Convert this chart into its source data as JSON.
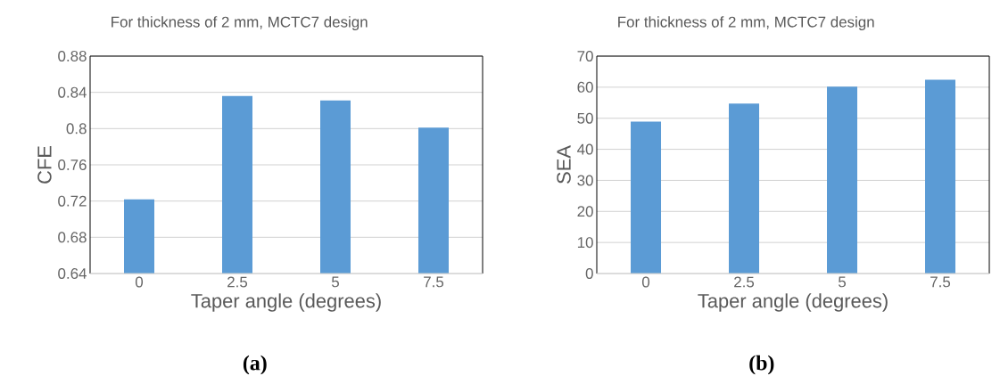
{
  "chart_data": [
    {
      "type": "bar",
      "title": "For thickness of 2 mm, MCTC7 design",
      "xlabel": "Taper angle (degrees)",
      "ylabel": "CFE",
      "categories": [
        "0",
        "2.5",
        "5",
        "7.5"
      ],
      "values": [
        0.722,
        0.836,
        0.831,
        0.801
      ],
      "color": "#5b9bd5",
      "ylim": [
        0.64,
        0.88
      ],
      "yticks": [
        0.64,
        0.68,
        0.72,
        0.76,
        0.8,
        0.84,
        0.88
      ],
      "grid": "y",
      "annotations": [
        "(a)"
      ]
    },
    {
      "type": "bar",
      "title": "For thickness of 2 mm, MCTC7 design",
      "xlabel": "Taper angle (degrees)",
      "ylabel": "SEA",
      "categories": [
        "0",
        "2.5",
        "5",
        "7.5"
      ],
      "values": [
        48.9,
        54.7,
        60.2,
        62.4
      ],
      "color": "#5b9bd5",
      "ylim": [
        0,
        70
      ],
      "yticks": [
        0,
        10,
        20,
        30,
        40,
        50,
        60,
        70
      ],
      "grid": "y",
      "annotations": [
        "(b)"
      ]
    }
  ]
}
